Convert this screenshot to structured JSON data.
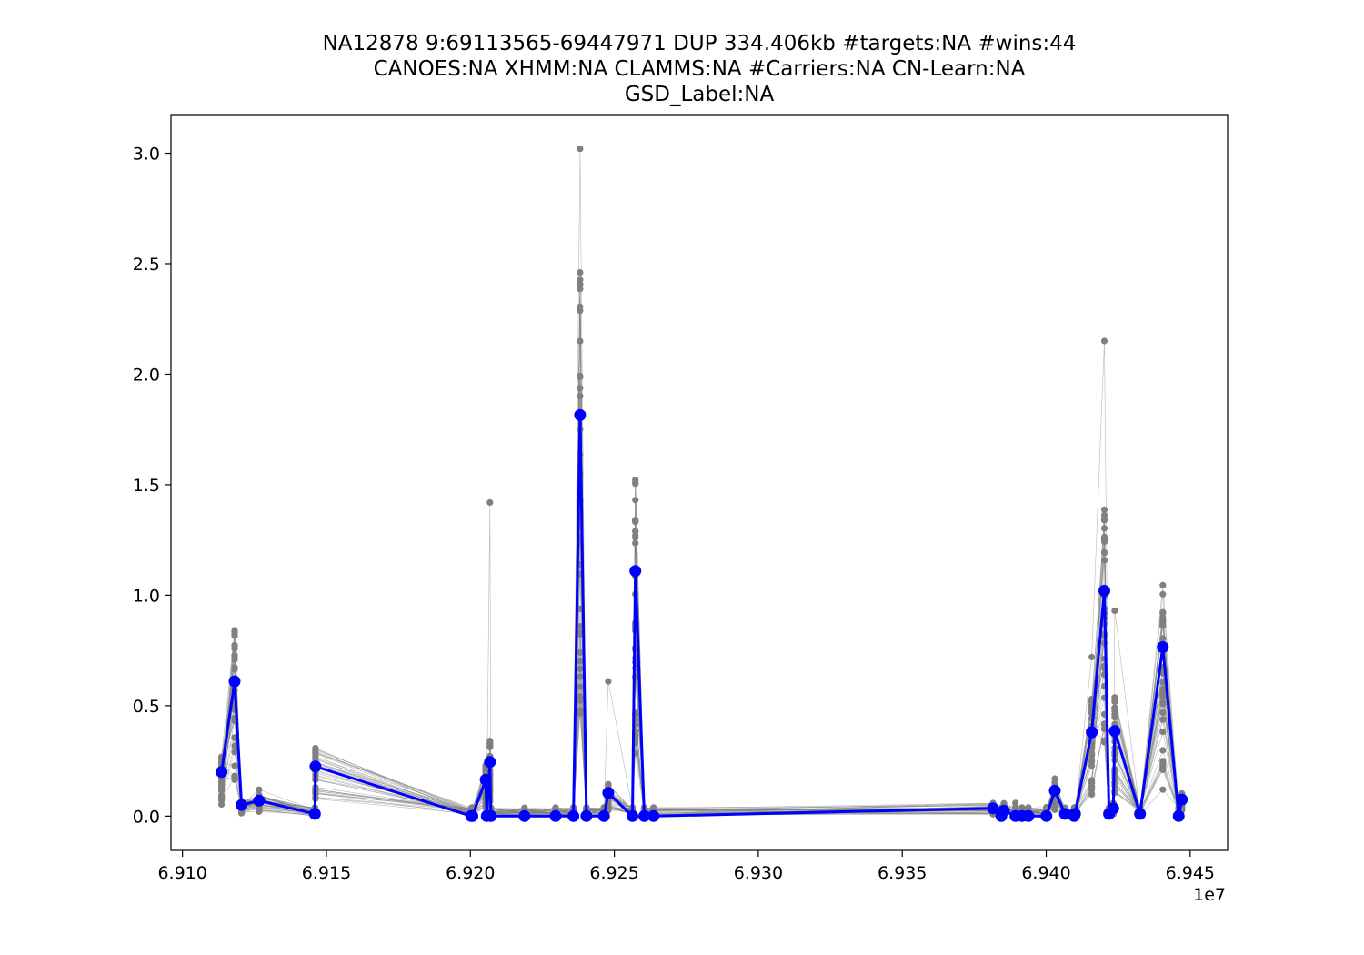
{
  "chart_data": {
    "type": "line",
    "title_lines": [
      "NA12878 9:69113565-69447971 DUP 334.406kb #targets:NA #wins:44",
      "CANOES:NA XHMM:NA CLAMMS:NA #Carriers:NA CN-Learn:NA",
      "GSD_Label:NA"
    ],
    "xlabel": "",
    "ylabel": "",
    "x_offset_label": "1e7",
    "xlim": [
      69096000,
      69463000
    ],
    "ylim": [
      -0.155,
      3.175
    ],
    "x_ticks": [
      {
        "value": 69100000,
        "label": "6.910"
      },
      {
        "value": 69150000,
        "label": "6.915"
      },
      {
        "value": 69200000,
        "label": "6.920"
      },
      {
        "value": 69250000,
        "label": "6.925"
      },
      {
        "value": 69300000,
        "label": "6.930"
      },
      {
        "value": 69350000,
        "label": "6.935"
      },
      {
        "value": 69400000,
        "label": "6.940"
      },
      {
        "value": 69450000,
        "label": "6.945"
      }
    ],
    "y_ticks": [
      {
        "value": 0.0,
        "label": "0.0"
      },
      {
        "value": 0.5,
        "label": "0.5"
      },
      {
        "value": 1.0,
        "label": "1.0"
      },
      {
        "value": 1.5,
        "label": "1.5"
      },
      {
        "value": 2.0,
        "label": "2.0"
      },
      {
        "value": 2.5,
        "label": "2.5"
      },
      {
        "value": 3.0,
        "label": "3.0"
      }
    ],
    "grid": false,
    "series": [
      {
        "role": "sample",
        "color": "#0000ff",
        "x": [
          69113565,
          69118100,
          69120500,
          69126600,
          69146000,
          69146200,
          69200300,
          69200700,
          69205300,
          69205700,
          69206800,
          69207100,
          69218800,
          69229600,
          69235800,
          69238100,
          69240300,
          69246400,
          69247900,
          69256300,
          69257300,
          69260400,
          69263600,
          69381500,
          69384400,
          69385300,
          69389300,
          69391600,
          69393800,
          69400100,
          69403000,
          69406500,
          69409700,
          69410000,
          69415800,
          69420200,
          69421800,
          69423300,
          69423800,
          69432600,
          69440500,
          69446000,
          69447100
        ],
        "y": [
          0.2,
          0.61,
          0.05,
          0.07,
          0.01,
          0.225,
          0.0,
          0.0,
          0.165,
          0.0,
          0.245,
          0.0,
          0.0,
          0.0,
          0.0,
          1.815,
          0.0,
          0.0,
          0.105,
          0.0,
          1.11,
          0.0,
          0.0,
          0.035,
          0.0,
          0.025,
          0.0,
          0.0,
          0.0,
          0.0,
          0.115,
          0.01,
          0.0,
          0.01,
          0.38,
          1.02,
          0.01,
          0.035,
          0.385,
          0.01,
          0.765,
          0.0,
          0.075
        ]
      }
    ],
    "background_distribution": {
      "color": "#808080",
      "note_max": [
        0.0,
        0.0
      ],
      "peak_max": [
        0.72,
        0.12,
        0.27,
        0.06,
        1.42,
        0.77,
        3.02,
        0.61,
        1.29,
        0.06,
        0.17,
        0.72,
        2.15,
        0.73,
        0.93,
        0.12
      ]
    }
  }
}
